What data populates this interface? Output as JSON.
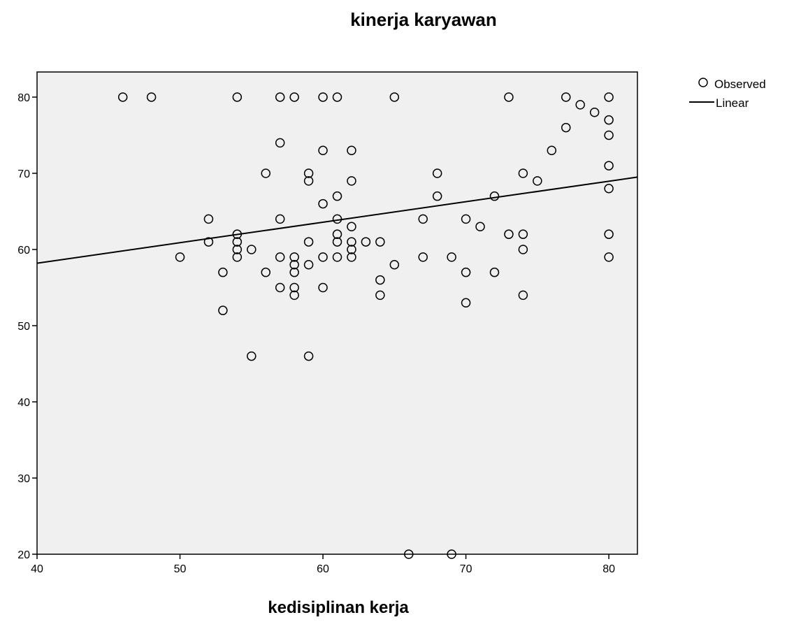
{
  "chart_data": {
    "type": "scatter",
    "title": "kinerja karyawan",
    "xlabel": "kedisiplinan kerja",
    "ylabel": "",
    "xlim": [
      40,
      82
    ],
    "ylim": [
      20,
      83.3
    ],
    "x_ticks": [
      40,
      50,
      60,
      70,
      80
    ],
    "y_ticks": [
      20,
      30,
      40,
      50,
      60,
      70,
      80
    ],
    "grid": false,
    "legend": {
      "placement": "top-right",
      "entries": [
        {
          "label": "Observed",
          "marker": "circle"
        },
        {
          "label": "Linear",
          "marker": "line"
        }
      ]
    },
    "colors": {
      "plot_background": "#f0f0f0",
      "marker": "#000000",
      "line": "#000000"
    },
    "series": [
      {
        "name": "Observed",
        "points": [
          [
            46,
            80
          ],
          [
            48,
            80
          ],
          [
            54,
            80
          ],
          [
            57,
            80
          ],
          [
            58,
            80
          ],
          [
            60,
            80
          ],
          [
            61,
            80
          ],
          [
            65,
            80
          ],
          [
            73,
            80
          ],
          [
            77,
            80
          ],
          [
            80,
            80
          ],
          [
            78,
            79
          ],
          [
            79,
            78
          ],
          [
            80,
            77
          ],
          [
            77,
            76
          ],
          [
            80,
            75
          ],
          [
            57,
            74
          ],
          [
            60,
            73
          ],
          [
            62,
            73
          ],
          [
            76,
            73
          ],
          [
            80,
            71
          ],
          [
            56,
            70
          ],
          [
            59,
            70
          ],
          [
            68,
            70
          ],
          [
            74,
            70
          ],
          [
            59,
            69
          ],
          [
            62,
            69
          ],
          [
            75,
            69
          ],
          [
            80,
            68
          ],
          [
            61,
            67
          ],
          [
            68,
            67
          ],
          [
            72,
            67
          ],
          [
            60,
            66
          ],
          [
            52,
            64
          ],
          [
            57,
            64
          ],
          [
            61,
            64
          ],
          [
            67,
            64
          ],
          [
            70,
            64
          ],
          [
            71,
            63
          ],
          [
            62,
            63
          ],
          [
            54,
            62
          ],
          [
            61,
            62
          ],
          [
            73,
            62
          ],
          [
            74,
            62
          ],
          [
            80,
            62
          ],
          [
            52,
            61
          ],
          [
            54,
            61
          ],
          [
            59,
            61
          ],
          [
            61,
            61
          ],
          [
            62,
            61
          ],
          [
            63,
            61
          ],
          [
            64,
            61
          ],
          [
            54,
            60
          ],
          [
            55,
            60
          ],
          [
            62,
            60
          ],
          [
            74,
            60
          ],
          [
            50,
            59
          ],
          [
            54,
            59
          ],
          [
            57,
            59
          ],
          [
            58,
            59
          ],
          [
            60,
            59
          ],
          [
            61,
            59
          ],
          [
            62,
            59
          ],
          [
            67,
            59
          ],
          [
            69,
            59
          ],
          [
            80,
            59
          ],
          [
            58,
            58
          ],
          [
            59,
            58
          ],
          [
            65,
            58
          ],
          [
            53,
            57
          ],
          [
            56,
            57
          ],
          [
            58,
            57
          ],
          [
            70,
            57
          ],
          [
            72,
            57
          ],
          [
            64,
            56
          ],
          [
            57,
            55
          ],
          [
            58,
            55
          ],
          [
            60,
            55
          ],
          [
            58,
            54
          ],
          [
            64,
            54
          ],
          [
            74,
            54
          ],
          [
            70,
            53
          ],
          [
            53,
            52
          ],
          [
            55,
            46
          ],
          [
            59,
            46
          ],
          [
            66,
            20
          ],
          [
            69,
            20
          ]
        ]
      },
      {
        "name": "Linear",
        "line": [
          [
            40,
            58.2
          ],
          [
            82,
            69.5
          ]
        ]
      }
    ]
  }
}
